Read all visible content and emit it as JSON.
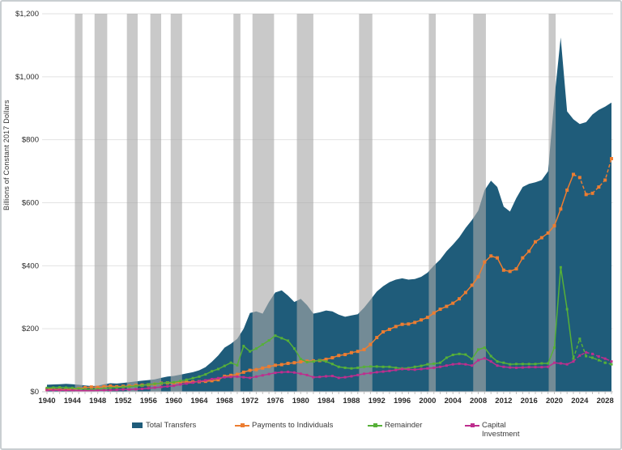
{
  "chart_data": {
    "type": "area",
    "title": "",
    "ylabel": "Billions of Constant 2017 Dollars",
    "ylim": [
      0,
      1200
    ],
    "y_ticks": [
      {
        "v": 0,
        "label": "$0"
      },
      {
        "v": 200,
        "label": "$200"
      },
      {
        "v": 400,
        "label": "$400"
      },
      {
        "v": 600,
        "label": "$600"
      },
      {
        "v": 800,
        "label": "$800"
      },
      {
        "v": 1000,
        "label": "$1,000"
      },
      {
        "v": 1200,
        "label": "$1,200"
      }
    ],
    "x_ticks": [
      1940,
      1944,
      1948,
      1952,
      1956,
      1960,
      1964,
      1968,
      1972,
      1976,
      1980,
      1984,
      1988,
      1992,
      1996,
      2000,
      2004,
      2008,
      2012,
      2016,
      2020,
      2024,
      2028
    ],
    "years_start": 1940,
    "years_end": 2029,
    "projection_start_year": 2023,
    "legend_position": "bottom",
    "grid": "horizontal",
    "recession_bands": [
      [
        1944.4,
        1945.6
      ],
      [
        1947.5,
        1949.5
      ],
      [
        1952.6,
        1954.3
      ],
      [
        1956.3,
        1958.0
      ],
      [
        1959.5,
        1961.3
      ],
      [
        1969.4,
        1970.5
      ],
      [
        1972.4,
        1975.8
      ],
      [
        1979.4,
        1982.0
      ],
      [
        1989.2,
        1991.3
      ],
      [
        2000.2,
        2001.3
      ],
      [
        2007.2,
        2009.2
      ],
      [
        2019.1,
        2020.2
      ]
    ],
    "band_color": "rgba(168,168,168,0.62)",
    "grid_color": "#e2e2e2",
    "axis_text_color": "#2b2b2b",
    "series": [
      {
        "name": "Total Transfers",
        "type": "area",
        "color": "#1f5c7a",
        "values": [
          22,
          23,
          24,
          25,
          24,
          22,
          20,
          18,
          19,
          24,
          27,
          26,
          28,
          30,
          33,
          35,
          37,
          39,
          44,
          48,
          50,
          54,
          58,
          62,
          68,
          78,
          95,
          115,
          140,
          152,
          168,
          200,
          250,
          255,
          248,
          285,
          315,
          322,
          305,
          285,
          295,
          275,
          248,
          252,
          258,
          255,
          245,
          238,
          242,
          246,
          267,
          292,
          318,
          335,
          348,
          356,
          360,
          356,
          358,
          365,
          378,
          400,
          420,
          446,
          467,
          490,
          520,
          545,
          575,
          640,
          670,
          650,
          588,
          572,
          615,
          650,
          660,
          665,
          672,
          700,
          930,
          1125,
          890,
          865,
          850,
          856,
          880,
          895,
          905,
          918
        ]
      },
      {
        "name": "Payments to Individuals",
        "type": "line",
        "color": "#ed7d31",
        "marker": "square",
        "values": [
          8,
          8,
          7,
          7,
          8,
          10,
          13,
          15,
          14,
          16,
          18,
          16,
          17,
          18,
          20,
          21,
          22,
          24,
          27,
          28,
          28,
          30,
          31,
          31,
          32,
          33,
          35,
          38,
          49,
          52,
          55,
          62,
          68,
          70,
          75,
          80,
          84,
          86,
          90,
          92,
          95,
          97,
          98,
          99,
          103,
          108,
          115,
          118,
          124,
          128,
          134,
          150,
          172,
          190,
          198,
          207,
          214,
          215,
          220,
          228,
          236,
          250,
          262,
          271,
          281,
          295,
          315,
          338,
          365,
          412,
          431,
          425,
          386,
          382,
          390,
          425,
          446,
          476,
          489,
          504,
          527,
          580,
          640,
          690,
          680,
          626,
          630,
          650,
          672,
          740
        ]
      },
      {
        "name": "Remainder",
        "type": "line",
        "color": "#56b038",
        "marker": "square",
        "values": [
          12,
          13,
          14,
          13,
          12,
          10,
          8,
          7,
          8,
          10,
          12,
          13,
          15,
          16,
          18,
          20,
          23,
          25,
          27,
          29,
          30,
          34,
          38,
          43,
          48,
          55,
          65,
          72,
          82,
          92,
          84,
          145,
          128,
          137,
          150,
          163,
          178,
          170,
          162,
          137,
          104,
          94,
          96,
          100,
          96,
          88,
          79,
          76,
          74,
          76,
          79,
          80,
          80,
          79,
          79,
          76,
          74,
          75,
          79,
          82,
          87,
          89,
          92,
          108,
          117,
          120,
          118,
          104,
          134,
          140,
          113,
          96,
          92,
          87,
          88,
          88,
          88,
          88,
          90,
          90,
          140,
          395,
          262,
          105,
          168,
          113,
          108,
          100,
          92,
          87
        ]
      },
      {
        "name": "Capital Investment",
        "type": "line",
        "color": "#be2e8e",
        "marker": "square",
        "values": [
          5,
          5,
          5,
          4,
          4,
          3,
          3,
          3,
          4,
          5,
          5,
          6,
          7,
          7,
          8,
          9,
          11,
          13,
          15,
          17,
          19,
          23,
          26,
          29,
          33,
          36,
          40,
          43,
          46,
          47,
          48,
          46,
          44,
          48,
          52,
          56,
          60,
          62,
          63,
          61,
          57,
          53,
          46,
          47,
          49,
          50,
          44,
          46,
          49,
          53,
          57,
          59,
          62,
          64,
          66,
          69,
          72,
          71,
          70,
          72,
          74,
          76,
          79,
          83,
          87,
          89,
          87,
          83,
          100,
          106,
          96,
          83,
          79,
          77,
          76,
          77,
          78,
          78,
          78,
          79,
          92,
          90,
          87,
          96,
          115,
          125,
          120,
          112,
          105,
          96
        ]
      }
    ]
  },
  "legend": {
    "capital_label_wrapped": "Capital\nInvestment"
  }
}
